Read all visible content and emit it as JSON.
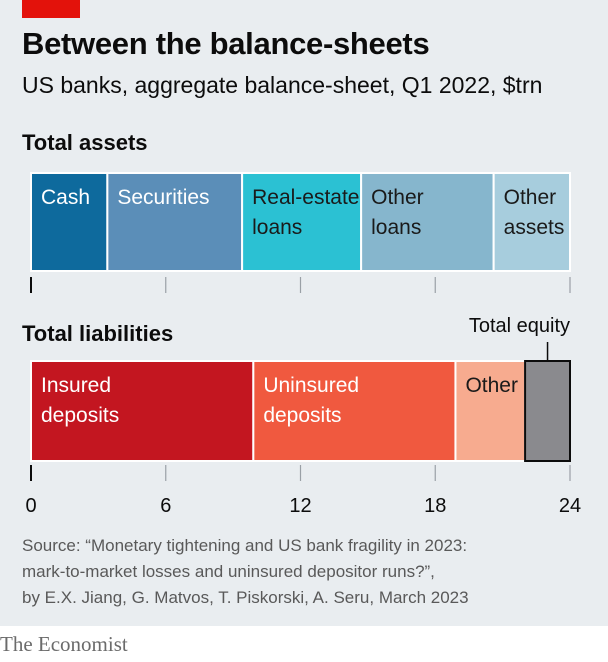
{
  "header": {
    "title": "Between the balance-sheets",
    "subtitle": "US banks, aggregate balance-sheet, Q1 2022, $trn"
  },
  "chart_data": {
    "type": "bar",
    "orientation": "horizontal-stacked",
    "unit": "$trn",
    "xlim": [
      0,
      24
    ],
    "x_ticks": [
      "0",
      "6",
      "12",
      "18",
      "24"
    ],
    "grid": false,
    "series": [
      {
        "name": "Total assets",
        "segments": [
          {
            "label": [
              "Cash"
            ],
            "value": 3.4,
            "color": "#0e6a9d"
          },
          {
            "label": [
              "Securities"
            ],
            "value": 6.0,
            "color": "#5b8eb8"
          },
          {
            "label": [
              "Real-estate",
              "loans"
            ],
            "value": 5.3,
            "color": "#2bc1d3"
          },
          {
            "label": [
              "Other",
              "loans"
            ],
            "value": 5.9,
            "color": "#86b6cd"
          },
          {
            "label": [
              "Other",
              "assets"
            ],
            "value": 3.4,
            "color": "#a7cddd"
          }
        ]
      },
      {
        "name": "Total liabilities",
        "segments": [
          {
            "label": [
              "Insured",
              "deposits"
            ],
            "value": 9.9,
            "color": "#c31620"
          },
          {
            "label": [
              "Uninsured",
              "deposits"
            ],
            "value": 9.0,
            "color": "#f0593f"
          },
          {
            "label": [
              "Other"
            ],
            "value": 3.1,
            "color": "#f7ab8f"
          },
          {
            "label": [
              ""
            ],
            "value": 2.0,
            "color": "#8a8a8e",
            "annotation": "Total equity"
          }
        ]
      }
    ]
  },
  "footer": {
    "source_lines": [
      "Source: “Monetary tightening and US bank fragility in 2023:",
      "mark-to-market losses and uninsured depositor runs?”,",
      "by E.X. Jiang, G. Matvos, T. Piskorski, A. Seru, March 2023"
    ],
    "brand": "The Economist"
  },
  "colors": {
    "background": "#e9edf0",
    "brand_red": "#e3120b",
    "text": "#0c0c0c",
    "axis": "#595959"
  }
}
